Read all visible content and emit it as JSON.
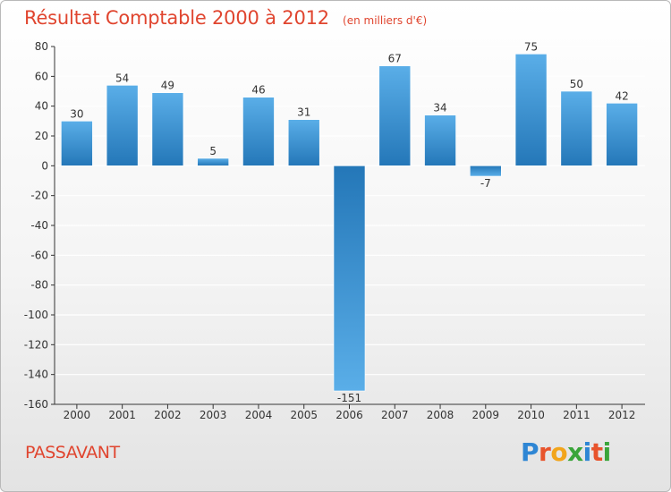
{
  "page": {
    "title": "Résultat Comptable 2000 à 2012",
    "subtitle": "(en milliers d'€)",
    "commune": "PASSAVANT",
    "brand_letters": [
      "P",
      "r",
      "o",
      "x",
      "i",
      "t",
      "i"
    ],
    "brand_colors": [
      "#2e86d4",
      "#e8542c",
      "#f2a51c",
      "#3aa53a",
      "#2e86d4",
      "#e8542c",
      "#3aa53a"
    ]
  },
  "colors": {
    "title": "#e0452f",
    "bar_light": "#5aaee8",
    "bar_dark": "#2477b8",
    "axis": "#333333",
    "grid": "#ffffff"
  },
  "chart_data": {
    "type": "bar",
    "title": "Résultat Comptable 2000 à 2012",
    "subtitle": "(en milliers d'€)",
    "xlabel": "",
    "ylabel": "",
    "ylim": [
      -160,
      80
    ],
    "yticks": [
      80,
      60,
      40,
      20,
      0,
      -20,
      -40,
      -60,
      -80,
      -100,
      -120,
      -140,
      -160
    ],
    "ytick_labels": [
      "80",
      "60",
      "40",
      "20",
      "0",
      "-20",
      "-40",
      "-60",
      "-80",
      "-100",
      "-120",
      "-140",
      "-160"
    ],
    "grid": true,
    "categories": [
      "2000",
      "2001",
      "2002",
      "2003",
      "2004",
      "2005",
      "2006",
      "2007",
      "2008",
      "2009",
      "2010",
      "2011",
      "2012"
    ],
    "values": [
      30,
      54,
      49,
      5,
      46,
      31,
      -151,
      67,
      34,
      -7,
      75,
      50,
      42
    ],
    "value_labels": [
      "30",
      "54",
      "49",
      "5",
      "46",
      "31",
      "-151",
      "67",
      "34",
      "-7",
      "75",
      "50",
      "42"
    ]
  }
}
